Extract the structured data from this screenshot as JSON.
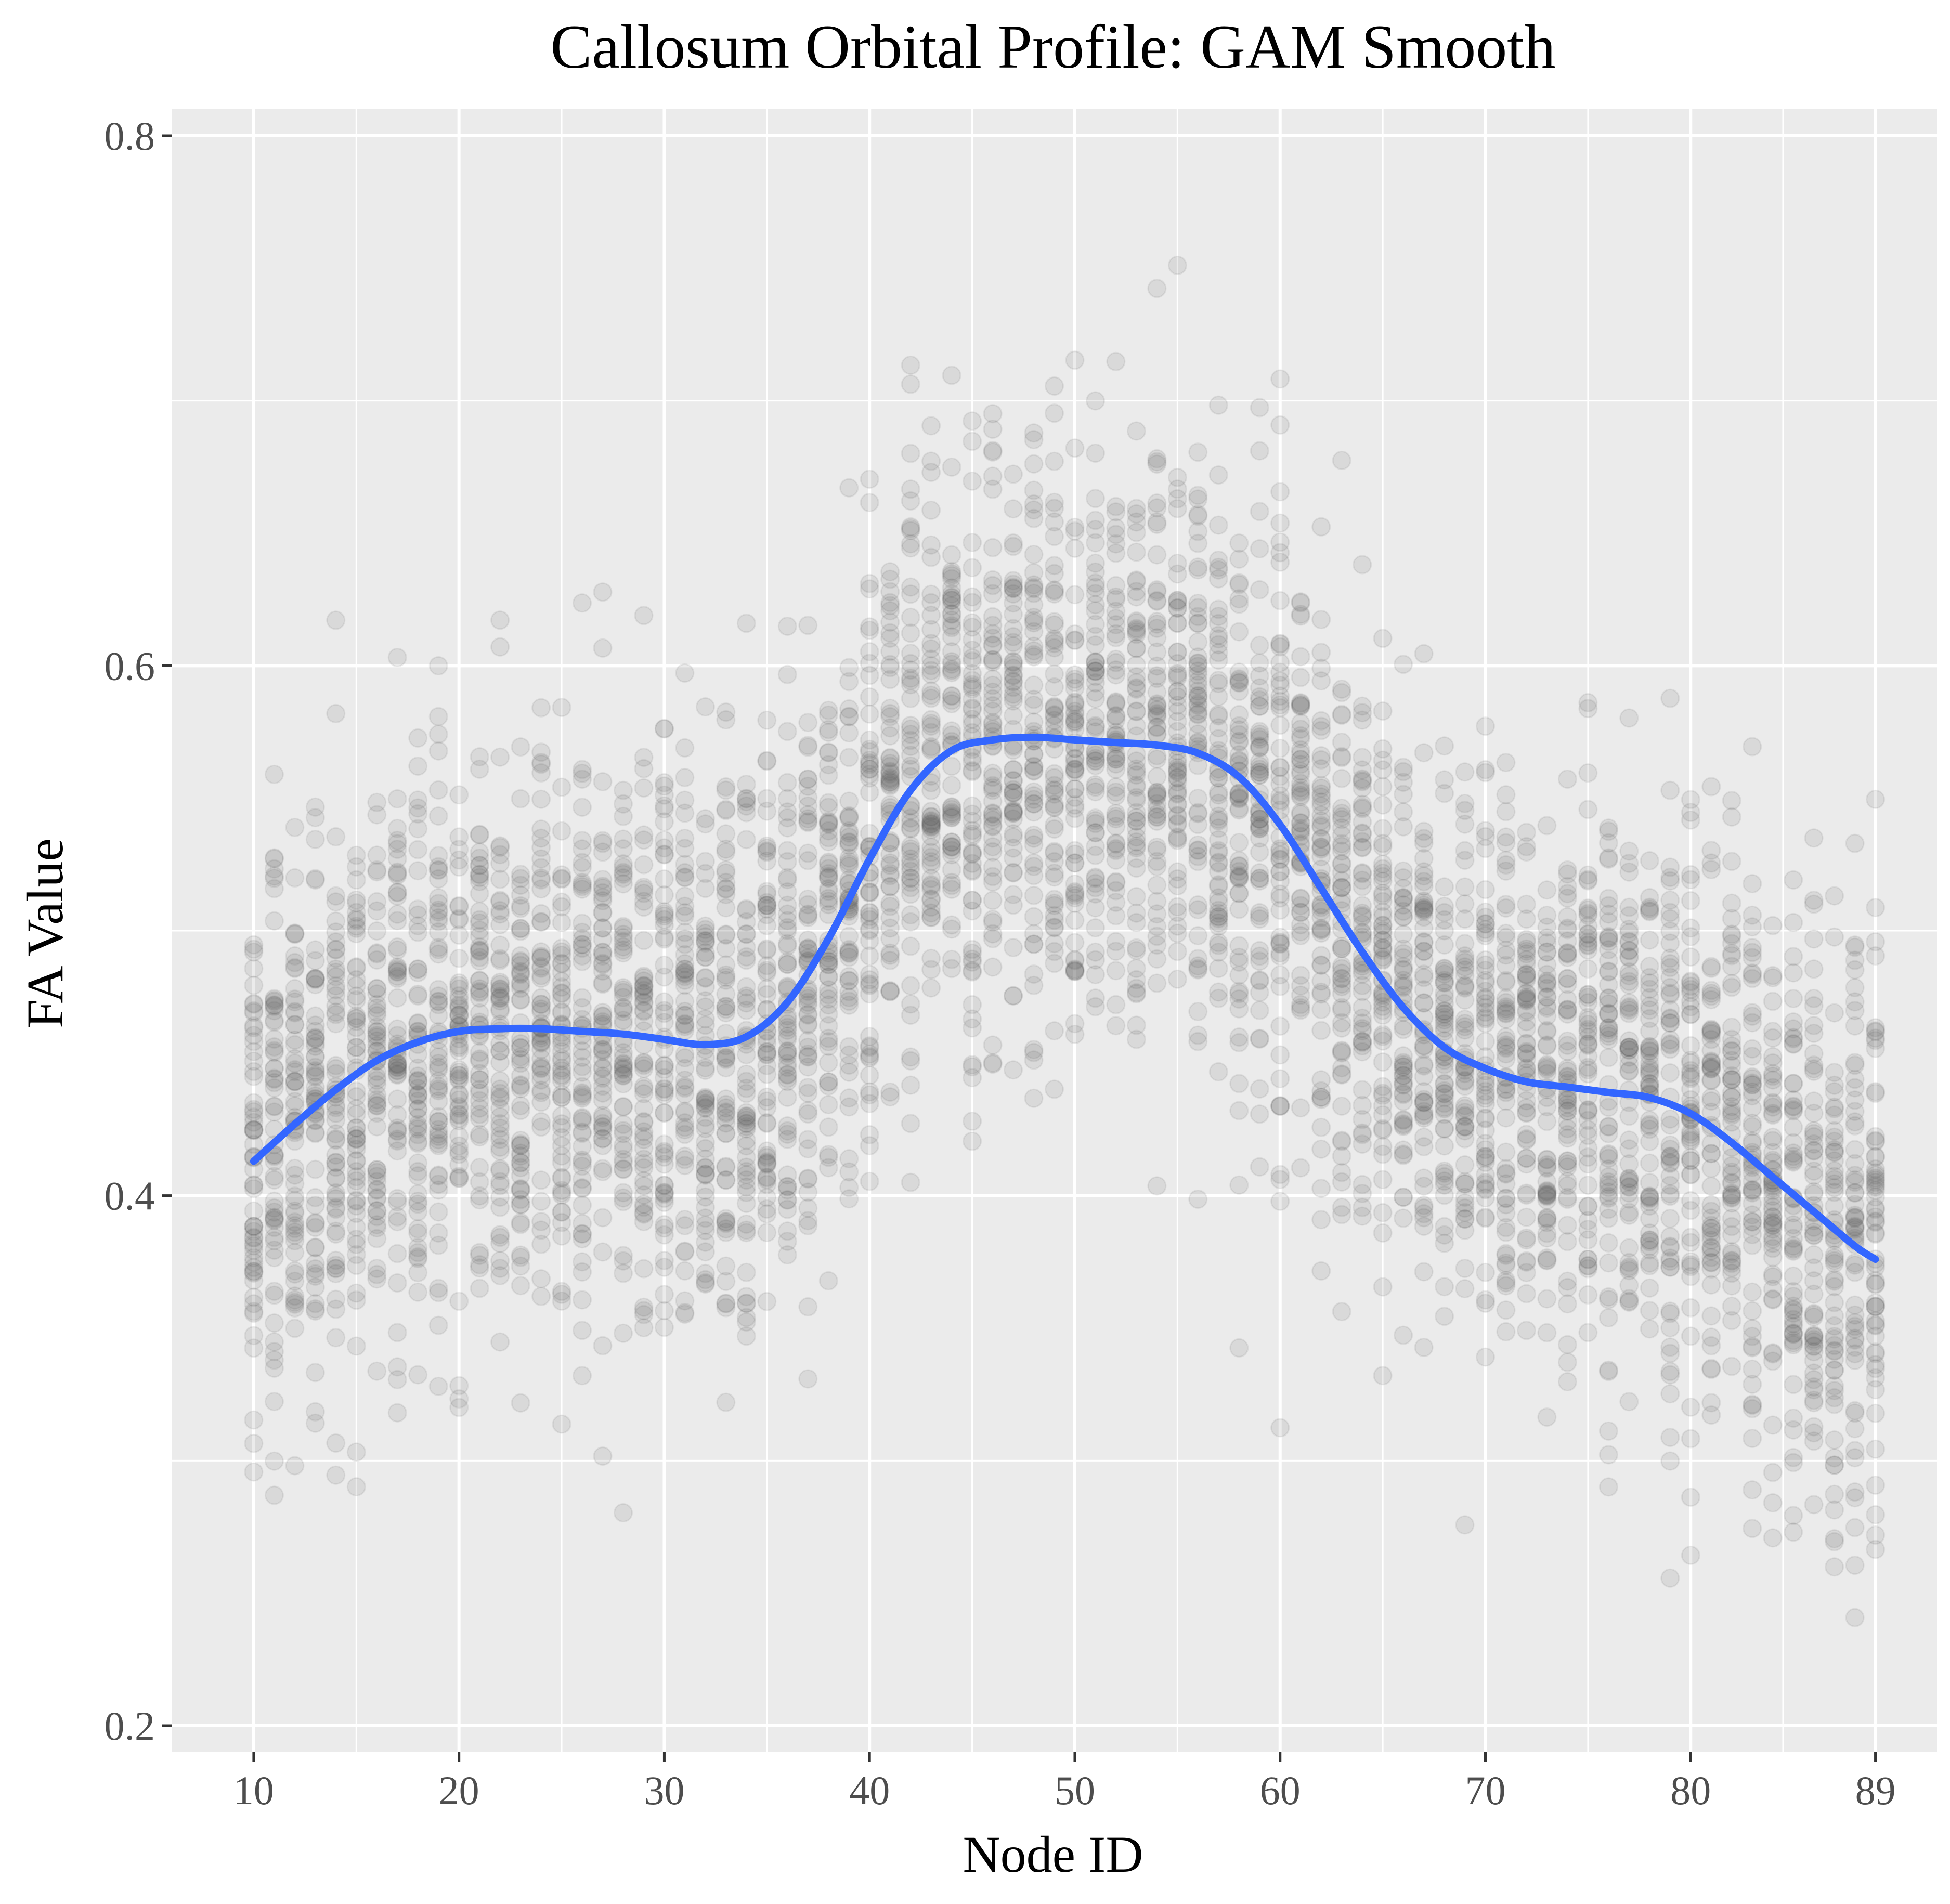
{
  "chart_data": {
    "type": "scatter",
    "title": "Callosum Orbital Profile: GAM Smooth",
    "xlabel": "Node ID",
    "ylabel": "FA Value",
    "xlim": [
      6,
      92
    ],
    "ylim": [
      0.19,
      0.81
    ],
    "x_ticks": [
      10,
      20,
      30,
      40,
      50,
      60,
      70,
      80,
      89
    ],
    "y_ticks": [
      0.2,
      0.4,
      0.6,
      0.8
    ],
    "grid": true,
    "legend": "none",
    "colors": {
      "panel_background": "#ebebeb",
      "grid_line": "#ffffff",
      "point": "#595959",
      "smooth_line": "#3366ff"
    },
    "point_opacity": 0.12,
    "point_distribution": {
      "x_range": [
        10,
        89
      ],
      "points_per_node": 60,
      "spread_sd": 0.055,
      "note_free": true
    },
    "series": [
      {
        "type": "points",
        "x_min": 10,
        "x_max": 89
      },
      {
        "type": "smooth",
        "x": [
          10,
          12,
          14,
          16,
          18,
          20,
          22,
          24,
          26,
          28,
          30,
          32,
          34,
          36,
          38,
          40,
          42,
          44,
          46,
          48,
          50,
          52,
          54,
          56,
          58,
          60,
          62,
          64,
          66,
          68,
          70,
          72,
          74,
          76,
          78,
          80,
          82,
          84,
          86,
          88,
          89
        ],
        "y": [
          0.413,
          0.427,
          0.44,
          0.451,
          0.458,
          0.462,
          0.463,
          0.463,
          0.462,
          0.461,
          0.459,
          0.457,
          0.46,
          0.473,
          0.497,
          0.527,
          0.553,
          0.568,
          0.572,
          0.573,
          0.572,
          0.571,
          0.57,
          0.567,
          0.558,
          0.54,
          0.516,
          0.492,
          0.471,
          0.456,
          0.448,
          0.443,
          0.441,
          0.439,
          0.437,
          0.431,
          0.42,
          0.407,
          0.394,
          0.381,
          0.376
        ]
      }
    ]
  }
}
